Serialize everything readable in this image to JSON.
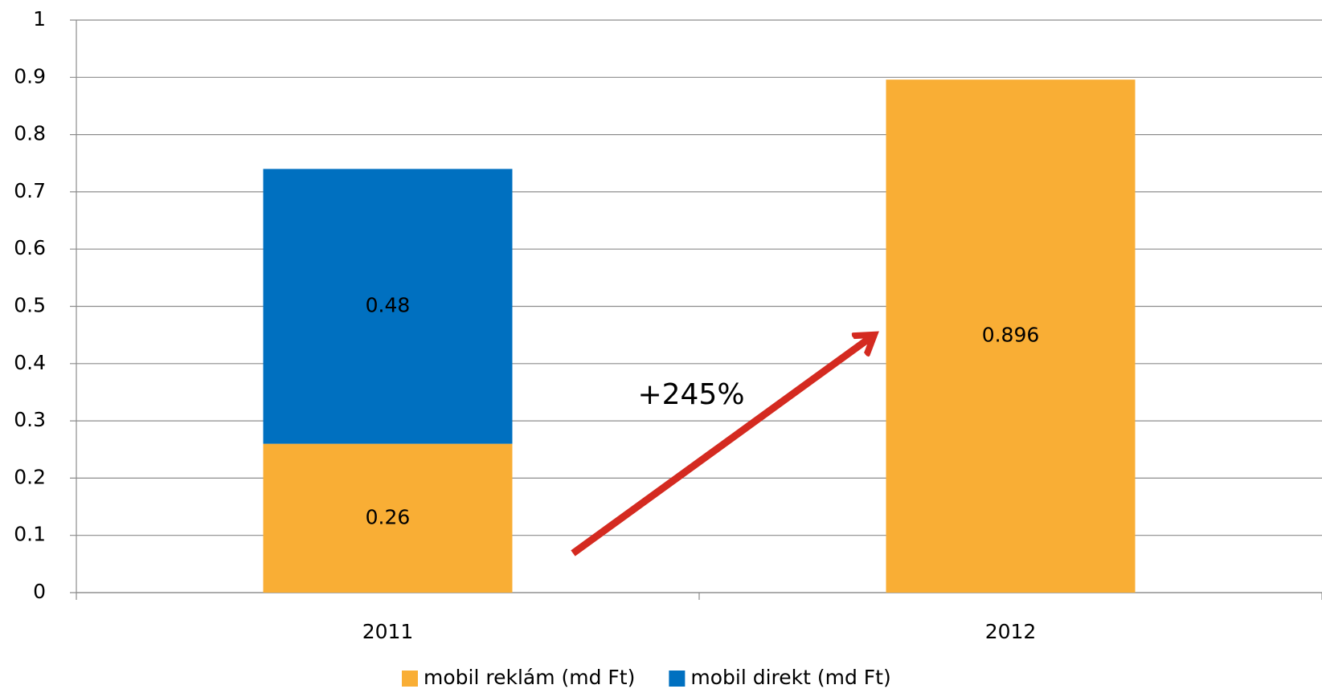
{
  "chart_data": {
    "type": "stacked_bar",
    "categories": [
      "2011",
      "2012"
    ],
    "series": [
      {
        "name": "mobil reklám (md Ft)",
        "color": "#f9ae35",
        "values": [
          0.26,
          0.896
        ]
      },
      {
        "name": "mobil direkt (md Ft)",
        "color": "#0070c0",
        "values": [
          0.48,
          null
        ]
      }
    ],
    "ylim": [
      0,
      1
    ],
    "yticks": [
      0,
      0.1,
      0.2,
      0.3,
      0.4,
      0.5,
      0.6,
      0.7,
      0.8,
      0.9,
      1
    ],
    "grid": true,
    "legend": "bottom",
    "annotation": "+245%"
  }
}
